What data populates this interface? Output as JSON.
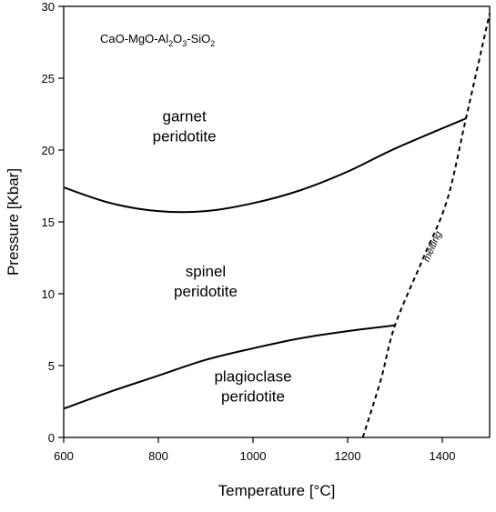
{
  "chart_data": {
    "type": "line",
    "title": "",
    "system_label_parts": [
      "CaO-MgO-Al",
      "2",
      "O",
      "3",
      "-SiO",
      "2"
    ],
    "xlabel": "Temperature [°C]",
    "ylabel": "Pressure [Kbar]",
    "xlim": [
      600,
      1500
    ],
    "ylim": [
      0,
      30
    ],
    "x_ticks": [
      600,
      800,
      1000,
      1200,
      1400
    ],
    "y_ticks": [
      0,
      5,
      10,
      15,
      20,
      25,
      30
    ],
    "grid": false,
    "region_labels": [
      {
        "lines": [
          "garnet",
          "peridotite"
        ],
        "x": 855,
        "y": 22
      },
      {
        "lines": [
          "spinel",
          "peridotite"
        ],
        "x": 900,
        "y": 11.2
      },
      {
        "lines": [
          "plagioclase",
          "peridotite"
        ],
        "x": 1000,
        "y": 3.9
      }
    ],
    "curves": [
      {
        "id": "garnet-spinel",
        "style": "solid",
        "points": [
          [
            600,
            17.4
          ],
          [
            700,
            16.3
          ],
          [
            800,
            15.75
          ],
          [
            900,
            15.75
          ],
          [
            1000,
            16.3
          ],
          [
            1100,
            17.2
          ],
          [
            1200,
            18.5
          ],
          [
            1300,
            20.1
          ],
          [
            1450,
            22.2
          ]
        ]
      },
      {
        "id": "spinel-plagioclase",
        "style": "solid",
        "points": [
          [
            600,
            2.0
          ],
          [
            700,
            3.2
          ],
          [
            800,
            4.3
          ],
          [
            900,
            5.4
          ],
          [
            1000,
            6.2
          ],
          [
            1100,
            6.9
          ],
          [
            1200,
            7.4
          ],
          [
            1300,
            7.8
          ]
        ]
      },
      {
        "id": "melting",
        "style": "dashed",
        "label": "melting",
        "points": [
          [
            1232,
            0
          ],
          [
            1270,
            4.0
          ],
          [
            1300,
            7.8
          ],
          [
            1360,
            12.5
          ],
          [
            1410,
            16.5
          ],
          [
            1450,
            22.2
          ],
          [
            1500,
            29.5
          ]
        ]
      }
    ],
    "melting_label_pos": {
      "x": 1385,
      "y": 13.2
    }
  }
}
